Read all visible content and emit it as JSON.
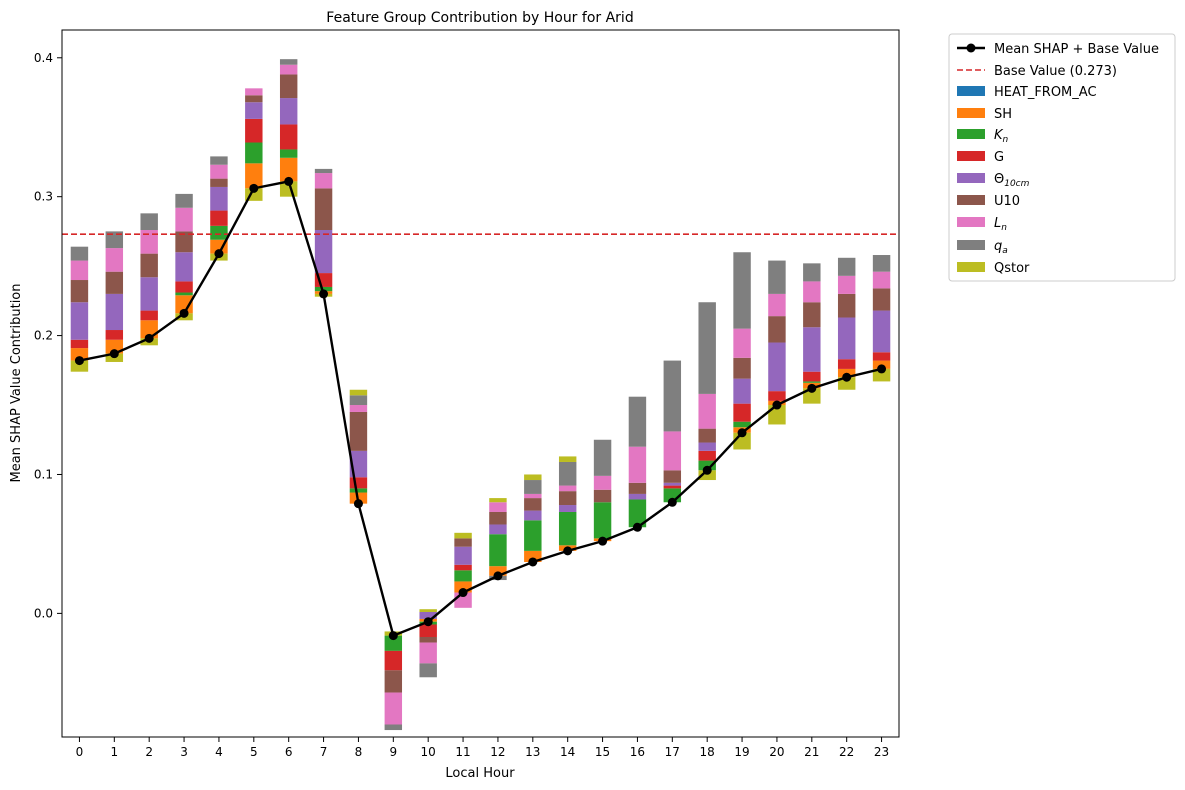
{
  "chart_data": {
    "type": "bar",
    "title": "Feature Group Contribution by Hour for Arid",
    "xlabel": "Local Hour",
    "ylabel": "Mean SHAP Value Contribution",
    "ylim": [
      -0.089,
      0.42
    ],
    "yticks": [
      0.0,
      0.1,
      0.2,
      0.3,
      0.4
    ],
    "ytick_labels": [
      "0.0",
      "0.1",
      "0.2",
      "0.3",
      "0.4"
    ],
    "categories": [
      "0",
      "1",
      "2",
      "3",
      "4",
      "5",
      "6",
      "7",
      "8",
      "9",
      "10",
      "11",
      "12",
      "13",
      "14",
      "15",
      "16",
      "17",
      "18",
      "19",
      "20",
      "21",
      "22",
      "23"
    ],
    "grid": false,
    "legend_position": "outside right, top",
    "base_value": 0.273,
    "base_label": "Base Value (0.273)",
    "mean_label": "Mean SHAP + Base Value",
    "mean_values": [
      0.182,
      0.187,
      0.198,
      0.216,
      0.259,
      0.306,
      0.311,
      0.23,
      0.079,
      -0.016,
      -0.006,
      0.015,
      0.027,
      0.037,
      0.045,
      0.052,
      0.062,
      0.08,
      0.103,
      0.13,
      0.15,
      0.162,
      0.17,
      0.176
    ],
    "series": [
      {
        "name": "HEAT_FROM_AC",
        "color": "#1f77b4",
        "values": [
          0,
          0,
          0,
          0,
          0,
          0,
          0,
          0,
          0,
          0,
          0,
          0,
          0,
          0,
          0,
          0,
          0,
          0,
          0,
          0,
          0,
          0,
          0,
          0
        ]
      },
      {
        "name": "SH",
        "color": "#ff7f0e",
        "values": [
          0.009,
          0.01,
          0.013,
          0.013,
          0.01,
          0.018,
          0.017,
          0.002,
          0.008,
          0.0,
          0.002,
          0.008,
          0.007,
          0.008,
          0.004,
          0.002,
          0.0,
          0.0,
          0.0,
          0.004,
          0.003,
          0.004,
          0.006,
          0.006
        ]
      },
      {
        "name": "K_n",
        "color": "#2ca02c",
        "values": [
          0.0,
          0.0,
          0.0,
          0.002,
          0.01,
          0.015,
          0.006,
          0.003,
          0.003,
          -0.011,
          -0.002,
          0.008,
          0.023,
          0.022,
          0.024,
          0.026,
          0.02,
          0.01,
          0.007,
          0.004,
          0.0,
          0.001,
          0.0,
          0.0
        ]
      },
      {
        "name": "G",
        "color": "#d62728",
        "values": [
          0.006,
          0.007,
          0.007,
          0.008,
          0.011,
          0.017,
          0.018,
          0.01,
          0.008,
          -0.014,
          -0.009,
          0.004,
          0.0,
          0.0,
          0.0,
          0.0,
          0.0,
          0.002,
          0.007,
          0.013,
          0.007,
          0.007,
          0.007,
          0.006
        ]
      },
      {
        "name": "Theta_10cm",
        "color": "#9467bd",
        "values": [
          0.027,
          0.026,
          0.024,
          0.021,
          0.017,
          0.012,
          0.019,
          0.031,
          0.019,
          0.0,
          0.005,
          0.013,
          0.007,
          0.007,
          0.005,
          0.0,
          0.004,
          0.002,
          0.006,
          0.018,
          0.035,
          0.032,
          0.03,
          0.03
        ]
      },
      {
        "name": "U10",
        "color": "#8c564b",
        "values": [
          0.016,
          0.016,
          0.017,
          0.015,
          0.006,
          0.005,
          0.017,
          0.03,
          0.028,
          -0.016,
          -0.004,
          0.006,
          0.009,
          0.009,
          0.01,
          0.009,
          0.008,
          0.009,
          0.01,
          0.015,
          0.019,
          0.018,
          0.017,
          0.016
        ]
      },
      {
        "name": "L_n",
        "color": "#e377c2",
        "values": [
          0.014,
          0.017,
          0.017,
          0.017,
          0.01,
          0.005,
          0.007,
          0.011,
          0.005,
          -0.023,
          -0.015,
          -0.011,
          0.007,
          0.003,
          0.004,
          0.01,
          0.026,
          0.028,
          0.025,
          0.021,
          0.016,
          0.015,
          0.013,
          0.012
        ]
      },
      {
        "name": "q_a",
        "color": "#7f7f7f",
        "values": [
          0.01,
          0.012,
          0.012,
          0.01,
          0.006,
          0.0,
          0.004,
          0.003,
          0.007,
          -0.004,
          -0.01,
          0.0,
          -0.003,
          0.01,
          0.017,
          0.026,
          0.036,
          0.051,
          0.066,
          0.055,
          0.024,
          0.013,
          0.013,
          0.012
        ]
      },
      {
        "name": "Qstor",
        "color": "#bcbd22",
        "values": [
          -0.008,
          -0.006,
          -0.005,
          -0.005,
          -0.005,
          -0.009,
          -0.011,
          -0.002,
          0.004,
          0.003,
          0.002,
          0.004,
          0.003,
          0.004,
          0.004,
          0.0,
          0.0,
          0.0,
          -0.007,
          -0.012,
          -0.014,
          -0.011,
          -0.009,
          -0.009
        ]
      }
    ]
  },
  "legend": {
    "mean_label": "Mean SHAP + Base Value",
    "base_label": "Base Value (0.273)",
    "heat_label": "HEAT_FROM_AC",
    "sh_label": "SH",
    "kn_main": "K",
    "kn_sub": "n",
    "g_label": "G",
    "theta_main": "Θ",
    "theta_sub": "10cm",
    "u10_label": "U10",
    "ln_main": "L",
    "ln_sub": "n",
    "qa_main": "q",
    "qa_sub": "a",
    "qstor_label": "Qstor"
  }
}
